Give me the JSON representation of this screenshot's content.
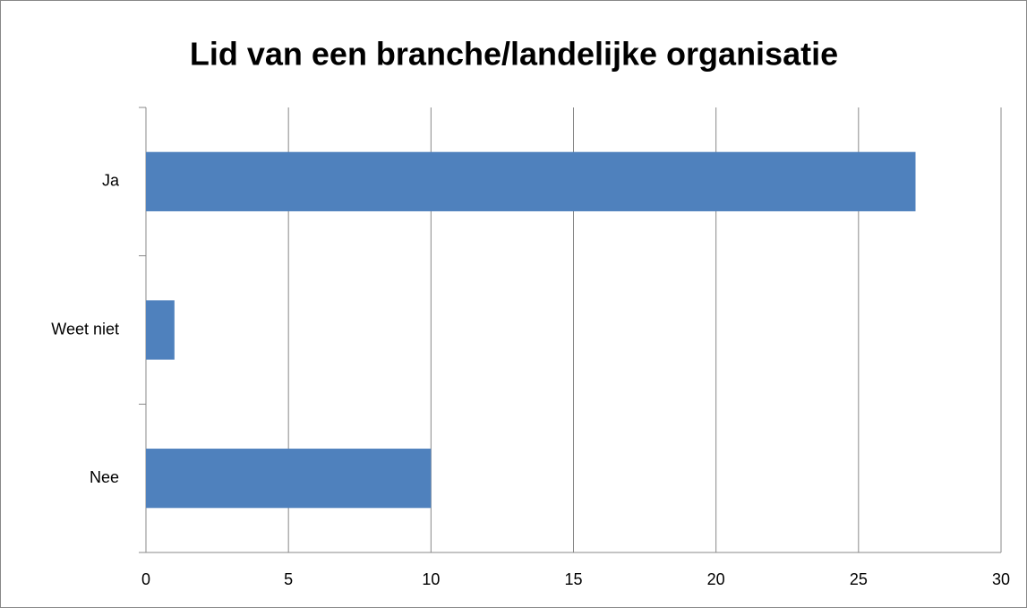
{
  "chart_data": {
    "type": "bar",
    "orientation": "horizontal",
    "title": "Lid van een branche/landelijke organisatie",
    "categories": [
      "Ja",
      "Weet niet",
      "Nee"
    ],
    "values": [
      27,
      1,
      10
    ],
    "color": "#4f81bd",
    "xlim": [
      0,
      30
    ],
    "xticks": [
      0,
      5,
      10,
      15,
      20,
      25,
      30
    ],
    "grid": true
  }
}
